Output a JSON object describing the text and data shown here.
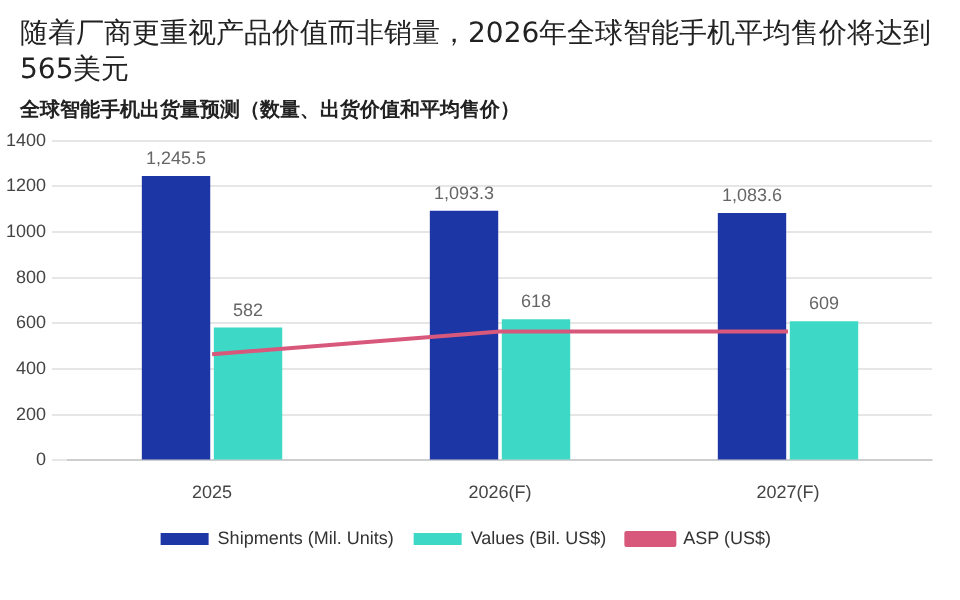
{
  "chart_data": {
    "type": "bar",
    "title": "随着厂商更重视产品价值而非销量，2026年全球智能手机平均售价将达到565美元",
    "subtitle": "全球智能手机出货量预测（数量、出货价值和平均售价）",
    "categories": [
      "2025",
      "2026(F)",
      "2027(F)"
    ],
    "series": [
      {
        "name": "Shipments (Mil. Units)",
        "color": "#1c36a6",
        "values": [
          1245.5,
          1093.3,
          1083.6
        ],
        "value_labels": [
          "1,245.5",
          "1,093.3",
          "1,083.6"
        ]
      },
      {
        "name": "Values (Bil. US$)",
        "color": "#3ed8c6",
        "values": [
          582,
          618,
          609
        ],
        "value_labels": [
          "582",
          "618",
          "609"
        ]
      },
      {
        "name": "ASP (US$)",
        "type": "line",
        "color": "#d8587c",
        "values": [
          465,
          565,
          565
        ]
      }
    ],
    "ylim": [
      0,
      1400
    ],
    "yticks": [
      0,
      200,
      400,
      600,
      800,
      1000,
      1200,
      1400
    ],
    "grid": "y",
    "legend": "bottom",
    "marker": "none"
  }
}
